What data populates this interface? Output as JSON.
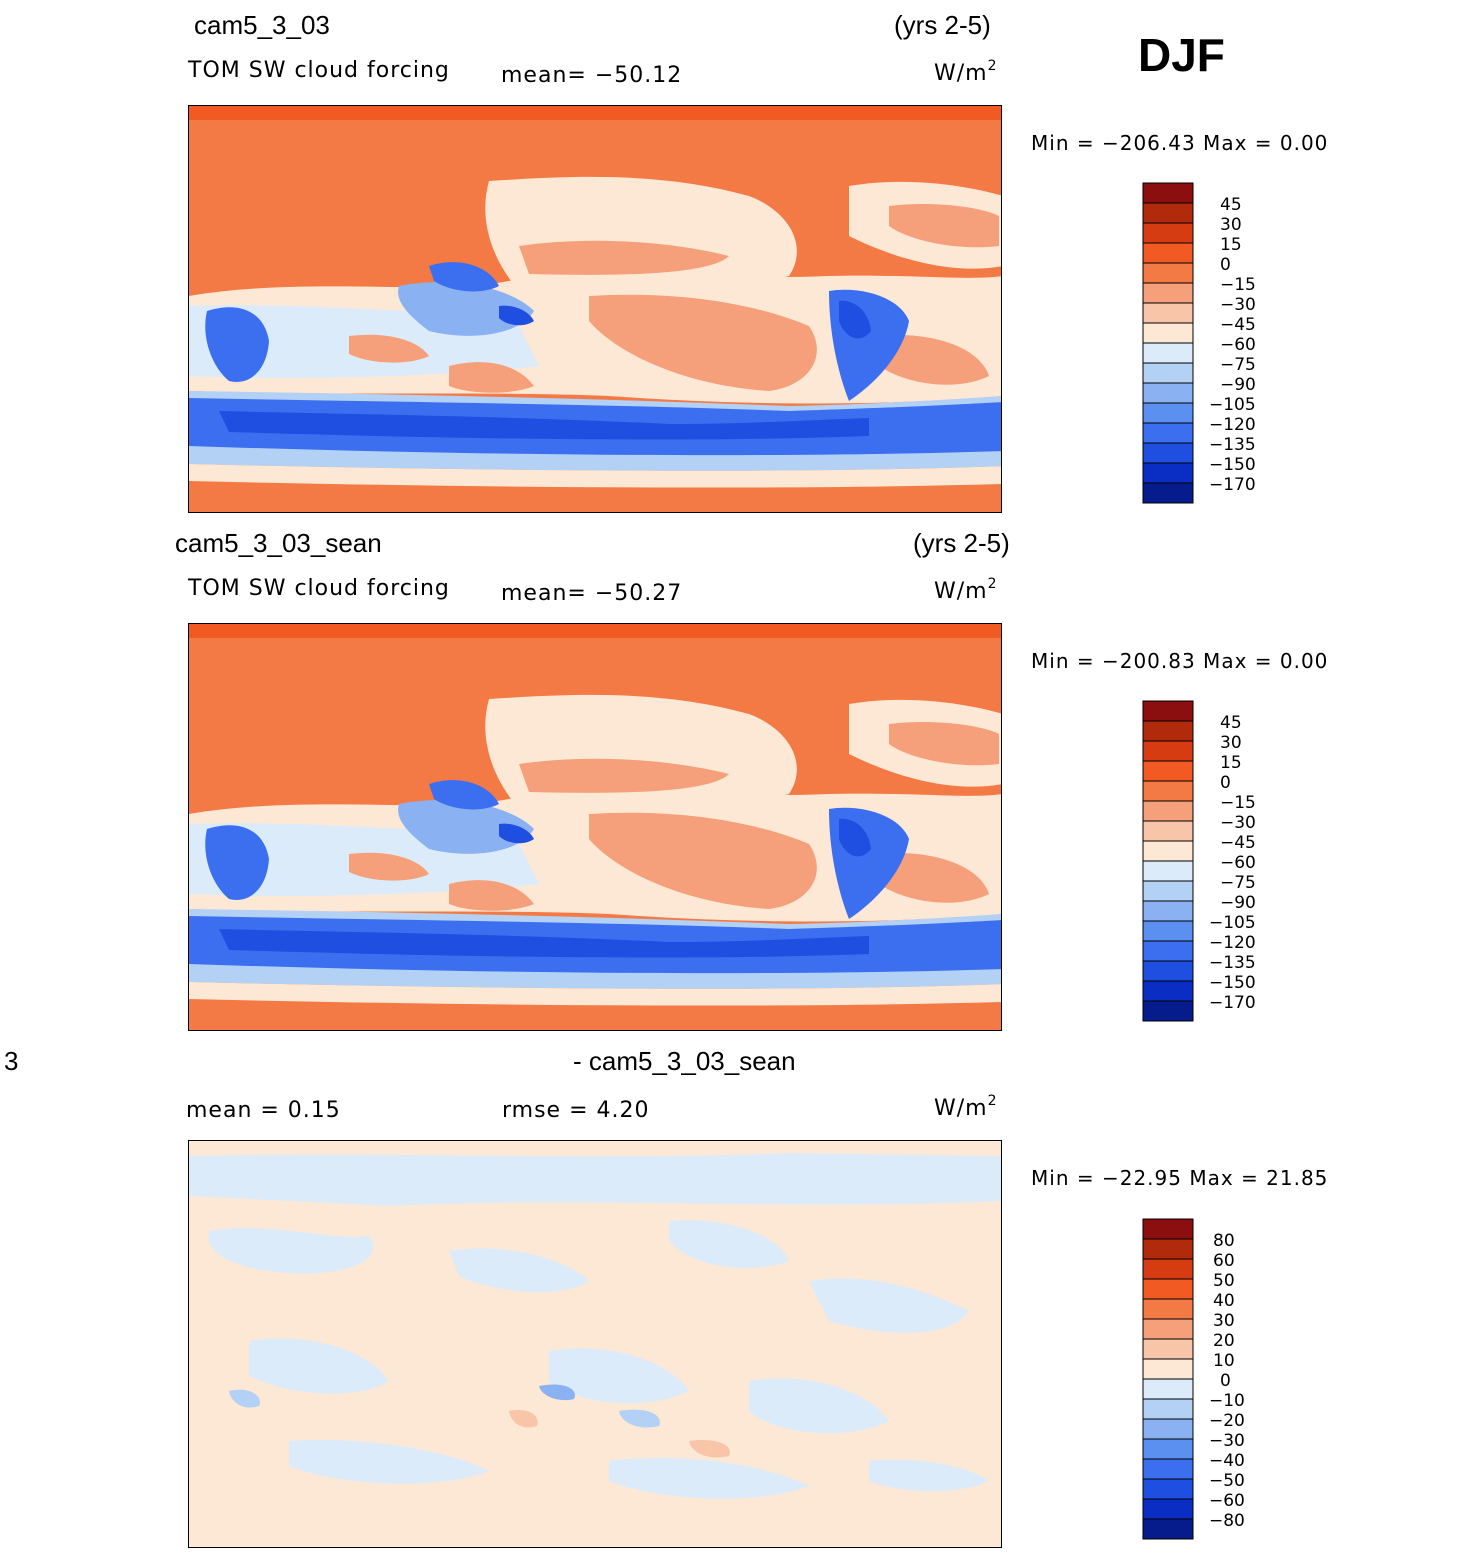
{
  "season": "DJF",
  "panels": [
    {
      "case_name": "cam5_3_03",
      "years": "(yrs 2-5)",
      "variable": "TOM SW cloud forcing",
      "stat_text": "mean=  −50.12",
      "units_base": "W/m",
      "units_exp": "2",
      "min_max_text": "Min  =  −206.43  Max  =      0.00",
      "legend_labels": [
        "45",
        "30",
        "15",
        "0",
        "−15",
        "−30",
        "−45",
        "−60",
        "−75",
        "−90",
        "−105",
        "−120",
        "−135",
        "−150",
        "−170"
      ],
      "legend_colors": [
        "#8b0f0f",
        "#b22a0c",
        "#d63c12",
        "#f25a24",
        "#f47a45",
        "#f5a07a",
        "#f9c5a8",
        "#fde8d6",
        "#dcebfa",
        "#b3d0f5",
        "#8ab2f2",
        "#5b8ff0",
        "#3b6ff0",
        "#1f4fe0",
        "#0a2ec4",
        "#071c8c"
      ],
      "map_palette": {
        "ocean_high": "#f47a45",
        "land": "#f47a45",
        "subtropic": "#f5a07a",
        "light": "#fde8d6",
        "pale_blue": "#dcebfa",
        "blue": "#8ab2f2",
        "strong_blue": "#3b6ff0",
        "deep_blue": "#1f4fe0"
      }
    },
    {
      "case_name": "cam5_3_03_sean",
      "years": "(yrs 2-5)",
      "variable": "TOM SW cloud forcing",
      "stat_text": "mean=  −50.27",
      "units_base": "W/m",
      "units_exp": "2",
      "min_max_text": "Min  =  −200.83  Max  =      0.00",
      "legend_labels": [
        "45",
        "30",
        "15",
        "0",
        "−15",
        "−30",
        "−45",
        "−60",
        "−75",
        "−90",
        "−105",
        "−120",
        "−135",
        "−150",
        "−170"
      ],
      "legend_colors": [
        "#8b0f0f",
        "#b22a0c",
        "#d63c12",
        "#f25a24",
        "#f47a45",
        "#f5a07a",
        "#f9c5a8",
        "#fde8d6",
        "#dcebfa",
        "#b3d0f5",
        "#8ab2f2",
        "#5b8ff0",
        "#3b6ff0",
        "#1f4fe0",
        "#0a2ec4",
        "#071c8c"
      ],
      "map_palette": {
        "ocean_high": "#f47a45",
        "land": "#f47a45",
        "subtropic": "#f5a07a",
        "light": "#fde8d6",
        "pale_blue": "#dcebfa",
        "blue": "#8ab2f2",
        "strong_blue": "#3b6ff0",
        "deep_blue": "#1f4fe0"
      }
    },
    {
      "case_left_fragment": "3",
      "case_name": "- cam5_3_03_sean",
      "stat_mean_text": "mean  =     0.15",
      "stat_rmse_text": "rmse  =     4.20",
      "units_base": "W/m",
      "units_exp": "2",
      "min_max_text": "Min  =  −22.95  Max  =    21.85",
      "legend_labels": [
        "80",
        "60",
        "50",
        "40",
        "30",
        "20",
        "10",
        "0",
        "−10",
        "−20",
        "−30",
        "−40",
        "−50",
        "−60",
        "−80"
      ],
      "legend_colors": [
        "#8b0f0f",
        "#b22a0c",
        "#d63c12",
        "#f25a24",
        "#f47a45",
        "#f5a07a",
        "#f9c5a8",
        "#fde8d6",
        "#dcebfa",
        "#b3d0f5",
        "#8ab2f2",
        "#5b8ff0",
        "#3b6ff0",
        "#1f4fe0",
        "#0a2ec4",
        "#071c8c"
      ],
      "map_palette": {
        "light": "#fde8d6",
        "pale_blue": "#dcebfa",
        "blue": "#b3d0f5",
        "pink": "#f9c5a8"
      }
    }
  ]
}
